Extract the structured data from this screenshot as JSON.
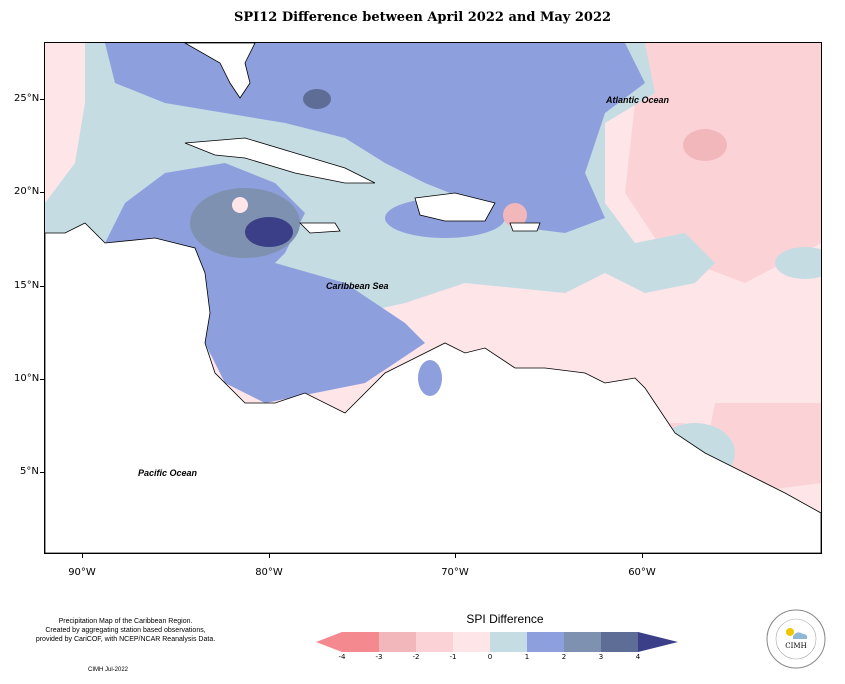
{
  "title": "SPI12 Difference between April 2022 and May 2022",
  "map": {
    "lat_labels": [
      "25°N",
      "20°N",
      "15°N",
      "10°N",
      "5°N"
    ],
    "lon_labels": [
      "90°W",
      "80°W",
      "70°W",
      "60°W"
    ],
    "ocean_labels": {
      "atlantic": "Atlantic Ocean",
      "caribbean": "Caribbean Sea",
      "pacific": "Pacific Ocean"
    },
    "colors": {
      "minus4": "#f4898f",
      "minus3": "#f2b7bb",
      "minus2": "#fbd3d7",
      "minus1": "#fde5e8",
      "zero": "#c5dce3",
      "plus1": "#8e9fde",
      "plus2": "#7e91b0",
      "plus3": "#5e6d96",
      "plus4": "#3a3f88"
    }
  },
  "footer": {
    "line1": "Precipitation Map of the Caribbean Region.",
    "line2": "Created by aggregating station based observations,",
    "line3": "provided by CariCOF, with NCEP/NCAR Reanalysis Data.",
    "credit": "CIMH Jul-2022"
  },
  "legend": {
    "title": "SPI Difference",
    "labels": [
      "-4",
      "-3",
      "-2",
      "-1",
      "0",
      "1",
      "2",
      "3",
      "4"
    ]
  },
  "logo": {
    "text": "CIMH"
  }
}
